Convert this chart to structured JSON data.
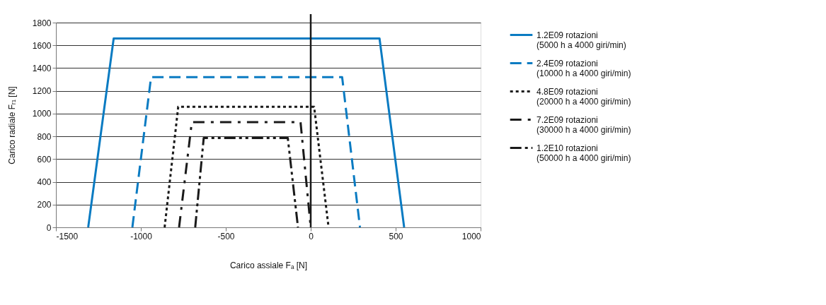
{
  "chart_data": {
    "type": "line",
    "xlabel": "Carico assiale Fₐ [N]",
    "ylabel": "Carico radiale Fᵣ₁ [N]",
    "series": [
      {
        "name": "1.2E09 rotazioni (5000 h a 4000 giri/min)",
        "color": "#0a7bc2",
        "line_style": "solid",
        "x": [
          -1310,
          -1160,
          405,
          550
        ],
        "values": [
          0,
          1660,
          1660,
          0
        ]
      },
      {
        "name": "2.4E09 rotazioni (10000 h a 4000 giri/min)",
        "color": "#0a7bc2",
        "line_style": "dashed",
        "x": [
          -1050,
          -940,
          185,
          290
        ],
        "values": [
          0,
          1320,
          1320,
          0
        ]
      },
      {
        "name": "4.8E09 rotazioni (20000 h a 4000 giri/min)",
        "color": "#1a1a1a",
        "line_style": "dotted",
        "x": [
          -860,
          -780,
          20,
          105
        ],
        "values": [
          0,
          1060,
          1060,
          0
        ]
      },
      {
        "name": "7.2E09 rotazioni (30000 h a 4000 giri/min)",
        "color": "#1a1a1a",
        "line_style": "dashdot",
        "x": [
          -775,
          -700,
          -60,
          0
        ],
        "values": [
          0,
          925,
          925,
          0
        ]
      },
      {
        "name": "1.2E10 rotazioni (50000 h a 4000 giri/min)",
        "color": "#1a1a1a",
        "line_style": "dashdotdot",
        "x": [
          -680,
          -630,
          -135,
          -75
        ],
        "values": [
          0,
          785,
          785,
          0
        ]
      }
    ],
    "xlim": [
      -1500,
      1000
    ],
    "xticks": [
      -1500,
      -1000,
      -500,
      0,
      500,
      1000
    ],
    "ylim": [
      0,
      1800
    ],
    "yticks": [
      0,
      200,
      400,
      600,
      800,
      1000,
      1200,
      1400,
      1600,
      1800
    ],
    "ref_lines": [
      {
        "axis": "x",
        "value": 0,
        "color": "#1a1a1a"
      }
    ],
    "grid": "y",
    "legend": "right",
    "marker": "none"
  }
}
